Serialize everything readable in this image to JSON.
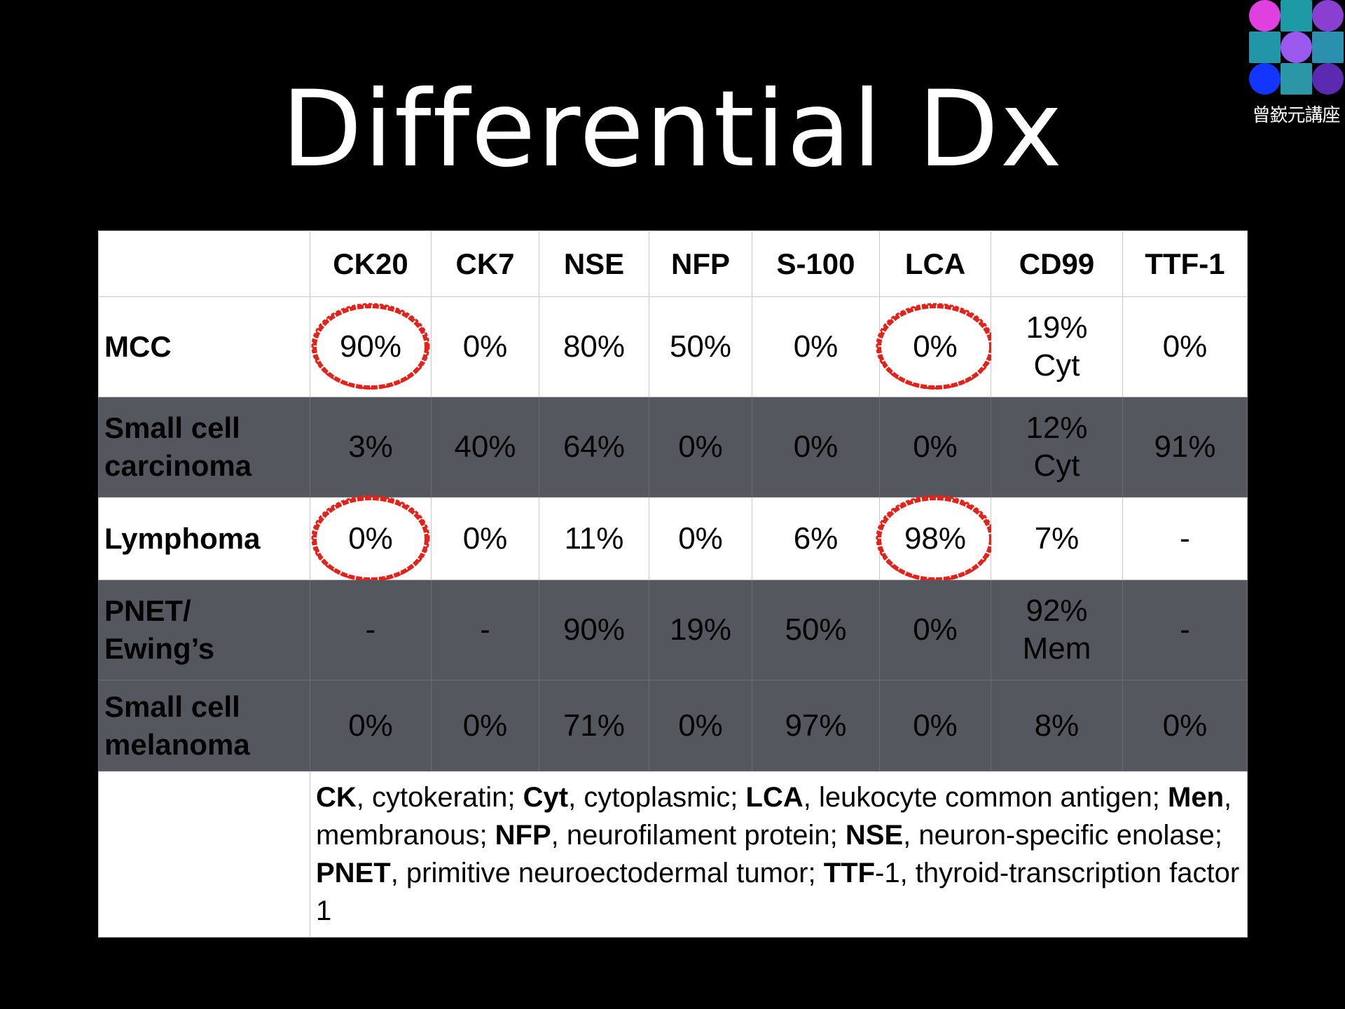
{
  "slide": {
    "title": "Differential Dx"
  },
  "logo": {
    "caption": "曾嶔元講座",
    "colors": [
      "#e040e0",
      "#1e9aa6",
      "#8b3fd1",
      "#2196a8",
      "#9b59f0",
      "#2b8fae",
      "#1235ff",
      "#2a96a6",
      "#5b2ab0"
    ]
  },
  "table": {
    "columns": [
      "",
      "CK20",
      "CK7",
      "NSE",
      "NFP",
      "S-100",
      "LCA",
      "CD99",
      "TTF-1"
    ],
    "rows": [
      {
        "label": [
          "MCC"
        ],
        "shade": "white",
        "cells": [
          "90%",
          "0%",
          "80%",
          "50%",
          "0%",
          "0%",
          "19%\nCyt",
          "0%"
        ]
      },
      {
        "label": [
          "Small cell",
          "carcinoma"
        ],
        "shade": "grey",
        "cells": [
          "3%",
          "40%",
          "64%",
          "0%",
          "0%",
          "0%",
          "12%\nCyt",
          "91%"
        ]
      },
      {
        "label": [
          "Lymphoma"
        ],
        "shade": "white",
        "cells": [
          "0%",
          "0%",
          "11%",
          "0%",
          "6%",
          "98%",
          "7%",
          "-"
        ]
      },
      {
        "label": [
          "PNET/",
          "Ewing’s"
        ],
        "shade": "grey",
        "cells": [
          "-",
          "-",
          "90%",
          "19%",
          "50%",
          "0%",
          "92%\nMem",
          "-"
        ]
      },
      {
        "label": [
          "Small cell",
          "melanoma"
        ],
        "shade": "grey",
        "cells": [
          "0%",
          "0%",
          "71%",
          "0%",
          "97%",
          "0%",
          "8%",
          "0%"
        ]
      }
    ],
    "circled": [
      [
        0,
        0
      ],
      [
        0,
        5
      ],
      [
        2,
        0
      ],
      [
        2,
        5
      ]
    ],
    "circle_color": "#e3231b",
    "legend": [
      {
        "b": "CK",
        "t": ", cytokeratin; "
      },
      {
        "b": "Cyt",
        "t": ", cytoplasmic; "
      },
      {
        "b": "LCA",
        "t": ", leukocyte common antigen; "
      },
      {
        "b": "Men",
        "t": ", membranous; "
      },
      {
        "b": "NFP",
        "t": ", neurofilament protein; "
      },
      {
        "b": "NSE",
        "t": ", neuron-specific enolase; "
      },
      {
        "b": "PNET",
        "t": ", primitive neuroectodermal tumor; "
      },
      {
        "b": "TTF",
        "t": "-1, thyroid-transcription factor 1"
      }
    ]
  }
}
